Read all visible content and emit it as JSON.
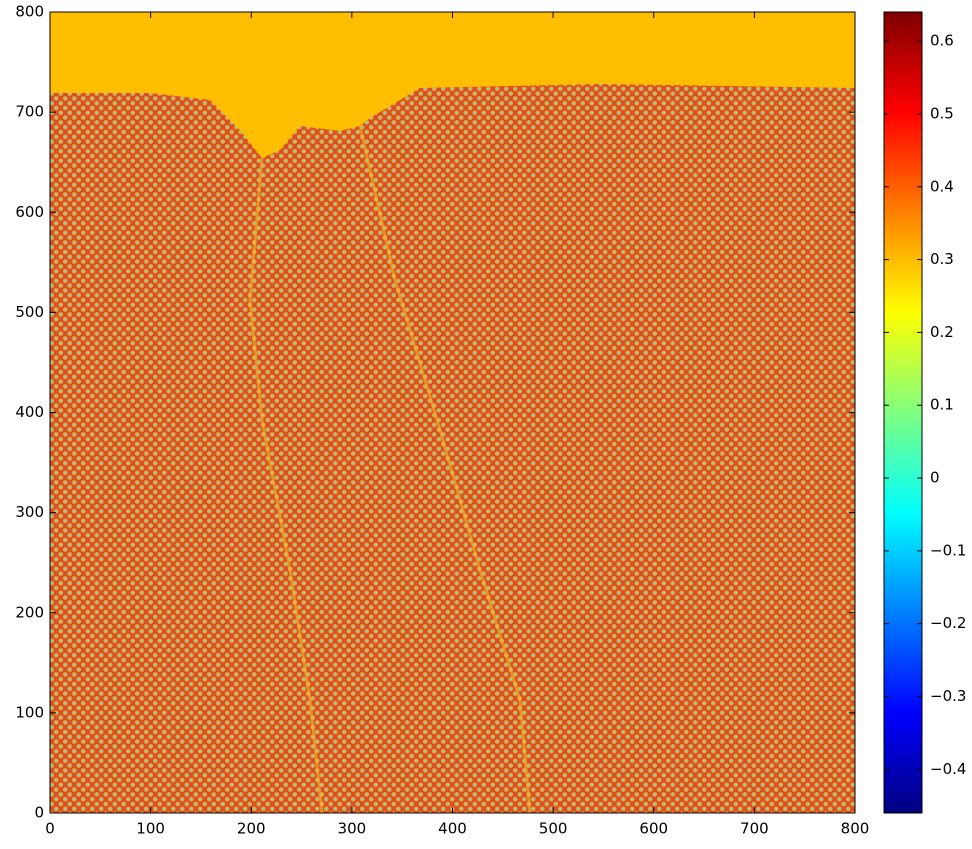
{
  "chart_data": {
    "type": "heatmap",
    "xlim": [
      0,
      800
    ],
    "ylim": [
      0,
      800
    ],
    "xticks": [
      0,
      100,
      200,
      300,
      400,
      500,
      600,
      700,
      800
    ],
    "yticks": [
      0,
      100,
      200,
      300,
      400,
      500,
      600,
      700,
      800
    ],
    "colormap": "jet",
    "clim": [
      -0.46,
      0.64
    ],
    "cticks": [
      {
        "value": -0.4,
        "label": "−0.4"
      },
      {
        "value": -0.3,
        "label": "−0.3"
      },
      {
        "value": -0.2,
        "label": "−0.2"
      },
      {
        "value": -0.1,
        "label": "−0.1"
      },
      0,
      0.1,
      0.2,
      0.3,
      0.4,
      0.5,
      0.6
    ]
  }
}
